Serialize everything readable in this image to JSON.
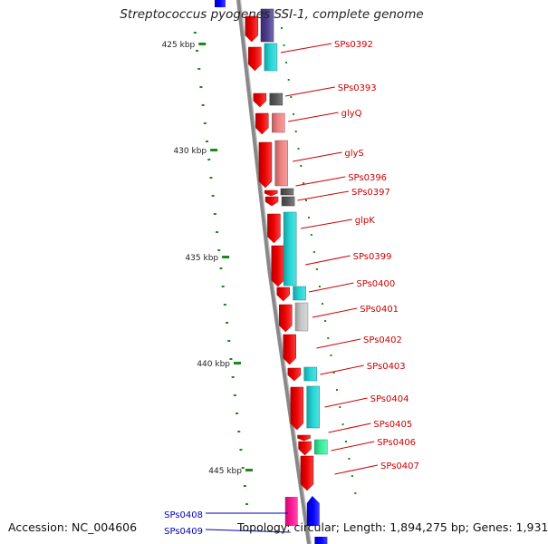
{
  "title": "Streptococcus pyogenes SSI-1, complete genome",
  "footer": {
    "accession": "Accession: NC_004606",
    "topology": "Topology: circular; Length: 1,894,275 bp; Genes: 1,931"
  },
  "colors": {
    "backbone": "#888888",
    "scale_tick": "#1a8a1a",
    "label_red": "#cc0000",
    "label_blue": "#0000bb",
    "gene_red": "#ee0000",
    "gene_blue": "#0000ff",
    "gene_pink": "#ff1493",
    "cyan": "#22d4d4",
    "light_red": "#f08080",
    "dark_gray": "#555555",
    "light_gray": "#c8c8c8",
    "navy": "#4a3c8c",
    "mint": "#33ee99"
  },
  "scale_labels": [
    "425 kbp",
    "430 kbp",
    "435 kbp",
    "440 kbp",
    "445 kbp"
  ],
  "gene_labels": [
    {
      "name": "SPs0392",
      "strand": "forward"
    },
    {
      "name": "SPs0393",
      "strand": "forward"
    },
    {
      "name": "glyQ",
      "strand": "forward"
    },
    {
      "name": "glyS",
      "strand": "forward"
    },
    {
      "name": "SPs0396",
      "strand": "forward"
    },
    {
      "name": "SPs0397",
      "strand": "forward"
    },
    {
      "name": "glpK",
      "strand": "forward"
    },
    {
      "name": "SPs0399",
      "strand": "forward"
    },
    {
      "name": "SPs0400",
      "strand": "forward"
    },
    {
      "name": "SPs0401",
      "strand": "forward"
    },
    {
      "name": "SPs0402",
      "strand": "forward"
    },
    {
      "name": "SPs0403",
      "strand": "forward"
    },
    {
      "name": "SPs0404",
      "strand": "forward"
    },
    {
      "name": "SPs0405",
      "strand": "forward"
    },
    {
      "name": "SPs0406",
      "strand": "forward"
    },
    {
      "name": "SPs0407",
      "strand": "forward"
    },
    {
      "name": "SPs0408",
      "strand": "reverse"
    },
    {
      "name": "SPs0409",
      "strand": "reverse"
    }
  ]
}
